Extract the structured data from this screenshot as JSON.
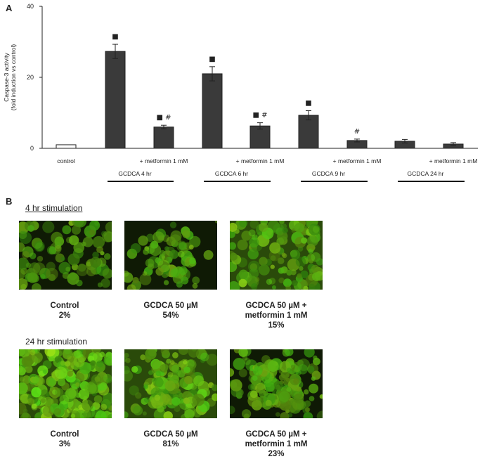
{
  "panel_a": "A",
  "panel_b": "B",
  "chart_data": {
    "type": "bar",
    "ylabel_line1": "Caspase-3 activity",
    "ylabel_line2": "(fold induction vs control)",
    "ylim": [
      0,
      40
    ],
    "yticks": [
      0,
      20,
      40
    ],
    "categories": [
      "control",
      "GCDCA 4 hr",
      "+ metformin 1 mM",
      "GCDCA 6 hr",
      "+ metformin 1 mM",
      "GCDCA 9 hr",
      "+ metformin 1 mM",
      "GCDCA 24 hr",
      "+ metformin 1 mM"
    ],
    "values": [
      1.0,
      27.3,
      6.0,
      21.0,
      6.3,
      9.3,
      2.2,
      2.0,
      1.2
    ],
    "errors": [
      0,
      2.0,
      0.5,
      2.0,
      0.9,
      1.3,
      0.4,
      0.5,
      0.4
    ],
    "bar_fill": [
      "#ffffff",
      "#3a3a3a",
      "#3a3a3a",
      "#3a3a3a",
      "#3a3a3a",
      "#3a3a3a",
      "#3a3a3a",
      "#3a3a3a",
      "#3a3a3a"
    ],
    "annotations": [
      "",
      "■",
      "■ #",
      "■",
      "■ #",
      "■",
      "#",
      "",
      ""
    ],
    "bottom_labels": [
      "control",
      "",
      "+ metformin 1 mM",
      "",
      "+ metformin 1 mM",
      "",
      "+ metformin 1 mM",
      "",
      "+ metformin 1 mM"
    ],
    "groups": [
      "GCDCA 4 hr",
      "GCDCA 6 hr",
      "GCDCA 9 hr",
      "GCDCA 24 hr"
    ]
  },
  "row1": {
    "title": "4 hr stimulation",
    "captions": [
      {
        "line1": "Control",
        "line2": "2%",
        "line3": ""
      },
      {
        "line1": "GCDCA 50 µM",
        "line2": "54%",
        "line3": ""
      },
      {
        "line1": "GCDCA 50 µM +",
        "line2": "metformin 1 mM",
        "line3": "15%"
      }
    ]
  },
  "row2": {
    "title": "24 hr stimulation",
    "captions": [
      {
        "line1": "Control",
        "line2": "3%",
        "line3": ""
      },
      {
        "line1": "GCDCA 50 µM",
        "line2": "81%",
        "line3": ""
      },
      {
        "line1": "GCDCA 50 µM +",
        "line2": "metformin 1 mM",
        "line3": "23%"
      }
    ]
  },
  "colors": {
    "bar_dark": "#3a3a3a",
    "axis": "#222222",
    "fluor": "#8fd022",
    "fluor_bg": "#0c1204"
  }
}
